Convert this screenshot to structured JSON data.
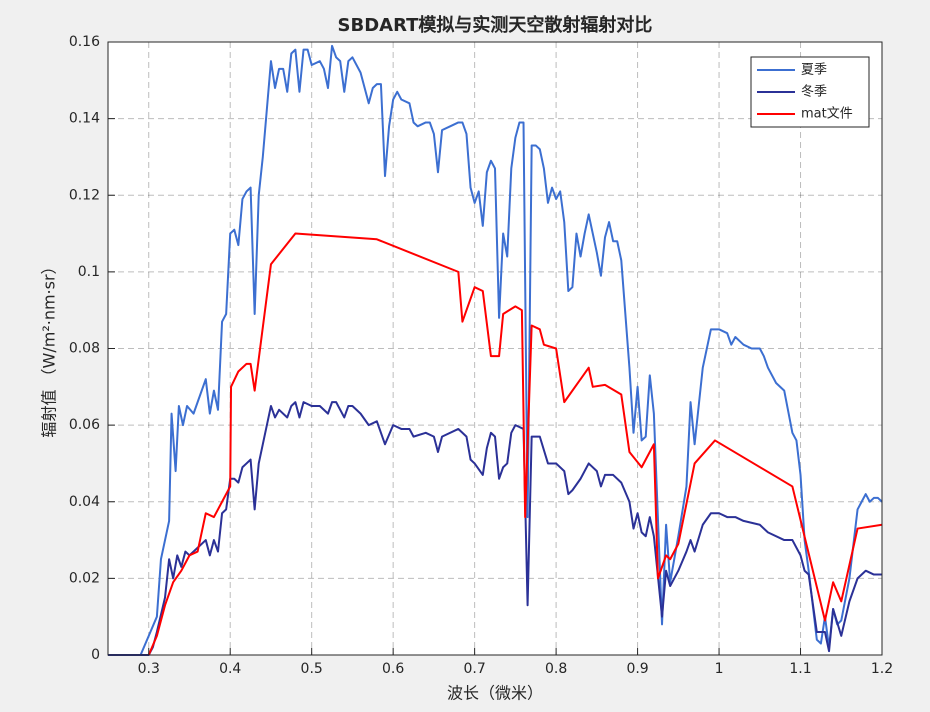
{
  "chart_data": {
    "type": "line",
    "title": "SBDART模拟与实测天空散射辐射对比",
    "x_label": "波长（微米）",
    "y_label": "辐射值 （W/m²·nm·sr）",
    "xlim": [
      0.25,
      1.2
    ],
    "ylim": [
      0,
      0.16
    ],
    "xticks": [
      0.3,
      0.4,
      0.5,
      0.6,
      0.7,
      0.8,
      0.9,
      1,
      1.1,
      1.2
    ],
    "yticks": [
      0,
      0.02,
      0.04,
      0.06,
      0.08,
      0.1,
      0.12,
      0.14,
      0.16
    ],
    "grid": true,
    "legend": "top-right",
    "series": [
      {
        "name": "夏季",
        "color": "#3c6fd1",
        "x": [
          0.25,
          0.29,
          0.3,
          0.31,
          0.315,
          0.325,
          0.328,
          0.333,
          0.337,
          0.342,
          0.347,
          0.355,
          0.36,
          0.37,
          0.375,
          0.38,
          0.385,
          0.39,
          0.395,
          0.4,
          0.405,
          0.41,
          0.415,
          0.42,
          0.425,
          0.43,
          0.435,
          0.44,
          0.45,
          0.455,
          0.46,
          0.465,
          0.47,
          0.475,
          0.48,
          0.485,
          0.49,
          0.495,
          0.5,
          0.51,
          0.515,
          0.52,
          0.525,
          0.53,
          0.535,
          0.54,
          0.545,
          0.55,
          0.56,
          0.57,
          0.575,
          0.58,
          0.585,
          0.59,
          0.595,
          0.6,
          0.605,
          0.61,
          0.62,
          0.625,
          0.63,
          0.64,
          0.645,
          0.65,
          0.655,
          0.66,
          0.67,
          0.68,
          0.685,
          0.69,
          0.695,
          0.7,
          0.705,
          0.71,
          0.715,
          0.72,
          0.725,
          0.73,
          0.735,
          0.74,
          0.745,
          0.75,
          0.755,
          0.76,
          0.765,
          0.77,
          0.775,
          0.78,
          0.785,
          0.79,
          0.795,
          0.8,
          0.805,
          0.81,
          0.815,
          0.82,
          0.825,
          0.83,
          0.835,
          0.84,
          0.85,
          0.855,
          0.86,
          0.865,
          0.87,
          0.875,
          0.88,
          0.89,
          0.895,
          0.9,
          0.905,
          0.91,
          0.915,
          0.92,
          0.93,
          0.935,
          0.94,
          0.945,
          0.95,
          0.96,
          0.965,
          0.97,
          0.98,
          0.985,
          0.99,
          1.0,
          1.01,
          1.015,
          1.02,
          1.03,
          1.04,
          1.05,
          1.055,
          1.06,
          1.07,
          1.08,
          1.09,
          1.095,
          1.1,
          1.105,
          1.11,
          1.12,
          1.125,
          1.13,
          1.135,
          1.14,
          1.145,
          1.15,
          1.16,
          1.17,
          1.175,
          1.18,
          1.185,
          1.19,
          1.195,
          1.2
        ],
        "values": [
          0,
          0,
          0.005,
          0.01,
          0.025,
          0.035,
          0.063,
          0.048,
          0.065,
          0.06,
          0.065,
          0.063,
          0.066,
          0.072,
          0.063,
          0.069,
          0.064,
          0.087,
          0.089,
          0.11,
          0.111,
          0.107,
          0.119,
          0.121,
          0.122,
          0.089,
          0.12,
          0.13,
          0.155,
          0.148,
          0.153,
          0.153,
          0.147,
          0.157,
          0.158,
          0.147,
          0.158,
          0.158,
          0.154,
          0.155,
          0.153,
          0.148,
          0.159,
          0.156,
          0.155,
          0.147,
          0.155,
          0.156,
          0.152,
          0.144,
          0.148,
          0.149,
          0.149,
          0.125,
          0.138,
          0.145,
          0.147,
          0.145,
          0.144,
          0.139,
          0.138,
          0.139,
          0.139,
          0.136,
          0.126,
          0.137,
          0.138,
          0.139,
          0.139,
          0.136,
          0.122,
          0.118,
          0.121,
          0.112,
          0.126,
          0.129,
          0.127,
          0.088,
          0.11,
          0.104,
          0.127,
          0.135,
          0.139,
          0.139,
          0.036,
          0.133,
          0.133,
          0.132,
          0.127,
          0.118,
          0.122,
          0.119,
          0.121,
          0.113,
          0.095,
          0.096,
          0.11,
          0.104,
          0.11,
          0.115,
          0.105,
          0.099,
          0.109,
          0.113,
          0.108,
          0.108,
          0.103,
          0.075,
          0.058,
          0.07,
          0.056,
          0.057,
          0.073,
          0.063,
          0.008,
          0.034,
          0.019,
          0.025,
          0.031,
          0.044,
          0.066,
          0.055,
          0.075,
          0.08,
          0.085,
          0.085,
          0.084,
          0.081,
          0.083,
          0.081,
          0.08,
          0.08,
          0.078,
          0.075,
          0.071,
          0.069,
          0.058,
          0.056,
          0.047,
          0.03,
          0.022,
          0.004,
          0.003,
          0.01,
          0.002,
          0.012,
          0.008,
          0.009,
          0.02,
          0.038,
          0.04,
          0.042,
          0.04,
          0.041,
          0.041,
          0.04
        ]
      },
      {
        "name": "冬季",
        "color": "#2b3197",
        "x": [
          0.25,
          0.3,
          0.305,
          0.31,
          0.32,
          0.325,
          0.33,
          0.335,
          0.34,
          0.345,
          0.35,
          0.36,
          0.37,
          0.375,
          0.38,
          0.385,
          0.39,
          0.395,
          0.4,
          0.405,
          0.41,
          0.415,
          0.42,
          0.425,
          0.43,
          0.435,
          0.44,
          0.45,
          0.455,
          0.46,
          0.47,
          0.475,
          0.48,
          0.485,
          0.49,
          0.5,
          0.51,
          0.52,
          0.525,
          0.53,
          0.54,
          0.545,
          0.55,
          0.56,
          0.57,
          0.58,
          0.59,
          0.6,
          0.61,
          0.62,
          0.625,
          0.64,
          0.65,
          0.655,
          0.66,
          0.68,
          0.685,
          0.69,
          0.695,
          0.7,
          0.71,
          0.715,
          0.72,
          0.725,
          0.73,
          0.735,
          0.74,
          0.745,
          0.75,
          0.76,
          0.765,
          0.77,
          0.78,
          0.79,
          0.8,
          0.81,
          0.815,
          0.82,
          0.83,
          0.84,
          0.85,
          0.855,
          0.86,
          0.87,
          0.88,
          0.89,
          0.895,
          0.9,
          0.905,
          0.91,
          0.915,
          0.92,
          0.93,
          0.935,
          0.94,
          0.95,
          0.96,
          0.965,
          0.97,
          0.98,
          0.99,
          1.0,
          1.01,
          1.02,
          1.03,
          1.05,
          1.06,
          1.08,
          1.09,
          1.1,
          1.105,
          1.11,
          1.12,
          1.13,
          1.135,
          1.14,
          1.15,
          1.16,
          1.17,
          1.18,
          1.19,
          1.2
        ],
        "values": [
          0,
          0,
          0.002,
          0.006,
          0.015,
          0.025,
          0.02,
          0.026,
          0.023,
          0.027,
          0.026,
          0.028,
          0.03,
          0.026,
          0.03,
          0.027,
          0.037,
          0.038,
          0.046,
          0.046,
          0.045,
          0.049,
          0.05,
          0.051,
          0.038,
          0.05,
          0.055,
          0.065,
          0.062,
          0.064,
          0.062,
          0.065,
          0.066,
          0.062,
          0.066,
          0.065,
          0.065,
          0.063,
          0.066,
          0.066,
          0.062,
          0.065,
          0.065,
          0.063,
          0.06,
          0.061,
          0.055,
          0.06,
          0.059,
          0.059,
          0.057,
          0.058,
          0.057,
          0.053,
          0.057,
          0.059,
          0.058,
          0.057,
          0.051,
          0.05,
          0.047,
          0.054,
          0.058,
          0.057,
          0.046,
          0.049,
          0.05,
          0.058,
          0.06,
          0.059,
          0.013,
          0.057,
          0.057,
          0.05,
          0.05,
          0.048,
          0.042,
          0.043,
          0.046,
          0.05,
          0.048,
          0.044,
          0.047,
          0.047,
          0.045,
          0.04,
          0.033,
          0.037,
          0.032,
          0.031,
          0.036,
          0.031,
          0.01,
          0.022,
          0.018,
          0.022,
          0.027,
          0.03,
          0.027,
          0.034,
          0.037,
          0.037,
          0.036,
          0.036,
          0.035,
          0.034,
          0.032,
          0.03,
          0.03,
          0.026,
          0.022,
          0.021,
          0.006,
          0.006,
          0.001,
          0.012,
          0.005,
          0.014,
          0.02,
          0.022,
          0.021,
          0.021
        ]
      },
      {
        "name": "mat文件",
        "color": "#ff0000",
        "x": [
          0.3,
          0.31,
          0.32,
          0.33,
          0.34,
          0.35,
          0.36,
          0.37,
          0.38,
          0.39,
          0.4,
          0.401,
          0.41,
          0.42,
          0.425,
          0.43,
          0.45,
          0.48,
          0.58,
          0.68,
          0.685,
          0.7,
          0.71,
          0.72,
          0.73,
          0.735,
          0.75,
          0.758,
          0.762,
          0.77,
          0.78,
          0.785,
          0.8,
          0.81,
          0.83,
          0.84,
          0.845,
          0.86,
          0.88,
          0.89,
          0.905,
          0.92,
          0.925,
          0.935,
          0.94,
          0.95,
          0.97,
          0.995,
          1.09,
          1.13,
          1.14,
          1.15,
          1.17,
          1.2
        ],
        "values": [
          0,
          0.005,
          0.013,
          0.019,
          0.022,
          0.026,
          0.027,
          0.037,
          0.036,
          0.04,
          0.044,
          0.07,
          0.074,
          0.076,
          0.076,
          0.069,
          0.102,
          0.11,
          0.1085,
          0.1,
          0.087,
          0.096,
          0.095,
          0.078,
          0.078,
          0.089,
          0.091,
          0.09,
          0.036,
          0.086,
          0.085,
          0.081,
          0.08,
          0.066,
          0.072,
          0.075,
          0.07,
          0.0705,
          0.068,
          0.053,
          0.049,
          0.055,
          0.02,
          0.026,
          0.025,
          0.029,
          0.05,
          0.056,
          0.044,
          0.009,
          0.019,
          0.014,
          0.033,
          0.034
        ]
      }
    ]
  }
}
